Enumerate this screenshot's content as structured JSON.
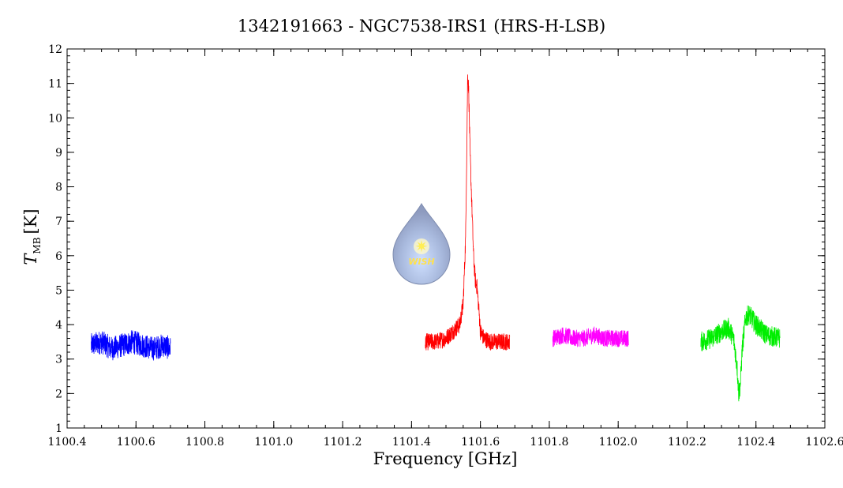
{
  "chart_data": {
    "type": "line",
    "title": "1342191663 - NGC7538-IRS1 (HRS-H-LSB)",
    "xlabel": "Frequency [GHz]",
    "ylabel": {
      "main": "T",
      "subscript": "MB",
      "unit": "[K]"
    },
    "xlim": [
      1100.4,
      1102.6
    ],
    "ylim": [
      1,
      12
    ],
    "xticks": [
      "1100.4",
      "1100.6",
      "1100.8",
      "1101.0",
      "1101.2",
      "1101.4",
      "1101.6",
      "1101.8",
      "1102.0",
      "1102.2",
      "1102.4",
      "1102.6"
    ],
    "yticks": [
      "1",
      "2",
      "3",
      "4",
      "5",
      "6",
      "7",
      "8",
      "9",
      "10",
      "11",
      "12"
    ],
    "grid": false,
    "logo": {
      "text": "WISH"
    },
    "series": [
      {
        "color": "#0000ff",
        "x": [
          1100.47,
          1100.5,
          1100.53,
          1100.56,
          1100.59,
          1100.62,
          1100.65,
          1100.68,
          1100.7
        ],
        "y": [
          3.4,
          3.5,
          3.3,
          3.4,
          3.5,
          3.4,
          3.3,
          3.4,
          3.3
        ],
        "noise": 0.35
      },
      {
        "color": "#ff0000",
        "x": [
          1101.44,
          1101.47,
          1101.5,
          1101.52,
          1101.54,
          1101.55,
          1101.557,
          1101.561,
          1101.563,
          1101.566,
          1101.57,
          1101.575,
          1101.58,
          1101.585,
          1101.59,
          1101.595,
          1101.6,
          1101.61,
          1101.63,
          1101.66,
          1101.685
        ],
        "y": [
          3.5,
          3.5,
          3.6,
          3.8,
          4.0,
          4.6,
          6.5,
          9.5,
          11.3,
          10.8,
          9.0,
          7.5,
          6.0,
          5.3,
          5.1,
          4.5,
          3.8,
          3.6,
          3.5,
          3.5,
          3.5
        ],
        "noise": 0.25
      },
      {
        "color": "#ff00ff",
        "x": [
          1101.81,
          1101.84,
          1101.87,
          1101.9,
          1101.93,
          1101.96,
          1101.99,
          1102.03
        ],
        "y": [
          3.6,
          3.7,
          3.6,
          3.6,
          3.7,
          3.6,
          3.6,
          3.6
        ],
        "noise": 0.25
      },
      {
        "color": "#00ee00",
        "x": [
          1102.24,
          1102.27,
          1102.3,
          1102.32,
          1102.335,
          1102.345,
          1102.35,
          1102.355,
          1102.36,
          1102.37,
          1102.38,
          1102.4,
          1102.43,
          1102.47
        ],
        "y": [
          3.5,
          3.6,
          3.8,
          3.9,
          3.6,
          2.8,
          2.0,
          2.3,
          3.3,
          4.2,
          4.3,
          4.0,
          3.7,
          3.6
        ],
        "noise": 0.3
      }
    ]
  }
}
